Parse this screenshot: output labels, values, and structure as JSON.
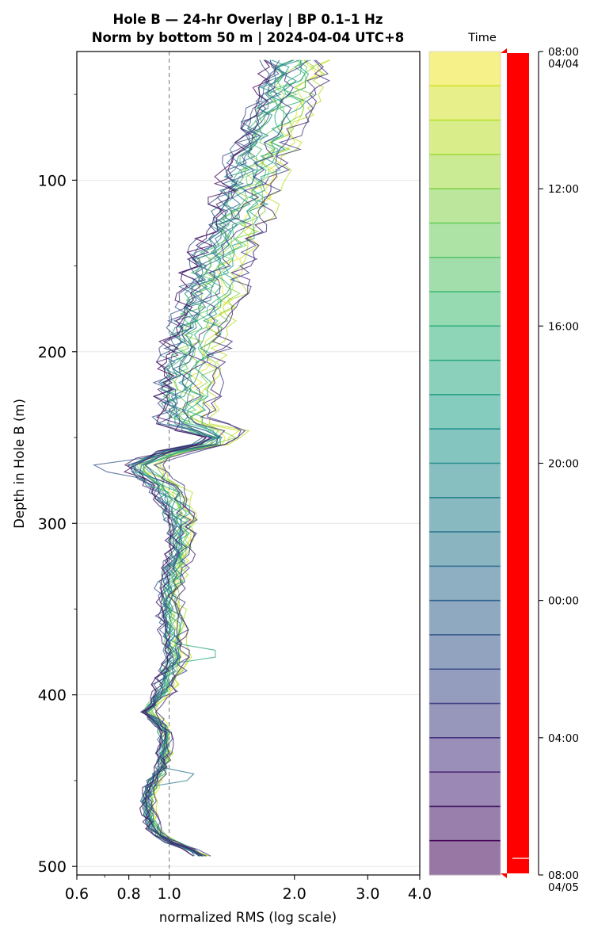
{
  "chart_data": {
    "type": "line",
    "title": "Hole B — 24-hr Overlay  |  BP 0.1–1 Hz",
    "subtitle": "Norm by bottom 50 m  |  2024-04-04 UTC+8",
    "xlabel": "normalized RMS  (log scale)",
    "ylabel": "Depth in Hole B (m)",
    "x_scale": "log",
    "xlim": [
      0.6,
      4.0
    ],
    "ylim": [
      505,
      25
    ],
    "x_ticks": [
      "0.6",
      "0.8",
      "1.0",
      "2.0",
      "3.0",
      "4.0"
    ],
    "y_ticks": [
      "100",
      "200",
      "300",
      "400",
      "500"
    ],
    "reference_line": {
      "x": 1.0,
      "style": "dashed",
      "color": "#808080"
    },
    "grid": "horizontal",
    "series_count": 24,
    "depth_profile": {
      "depth": [
        30,
        40,
        60,
        80,
        100,
        120,
        140,
        150,
        160,
        180,
        190,
        200,
        220,
        240,
        248,
        252,
        258,
        265,
        270,
        280,
        300,
        320,
        340,
        360,
        380,
        400,
        410,
        420,
        440,
        450,
        460,
        470,
        480,
        485,
        490,
        495
      ],
      "median_rms": [
        2.05,
        2.0,
        1.85,
        1.7,
        1.6,
        1.5,
        1.38,
        1.3,
        1.3,
        1.22,
        1.18,
        1.15,
        1.12,
        1.1,
        1.32,
        1.35,
        1.05,
        0.86,
        0.88,
        1.0,
        1.08,
        1.06,
        1.0,
        1.02,
        1.04,
        0.96,
        0.89,
        0.98,
        0.97,
        0.92,
        0.89,
        0.9,
        0.92,
        1.0,
        1.12,
        1.22
      ]
    },
    "colorbar": {
      "label": "Time",
      "ticks": [
        "08:00\n04/04",
        "12:00",
        "16:00",
        "20:00",
        "00:00",
        "04:00",
        "08:00\n04/05"
      ],
      "colormap": "viridis_r",
      "bands": 24,
      "indicator_color": "#ff0000"
    }
  }
}
